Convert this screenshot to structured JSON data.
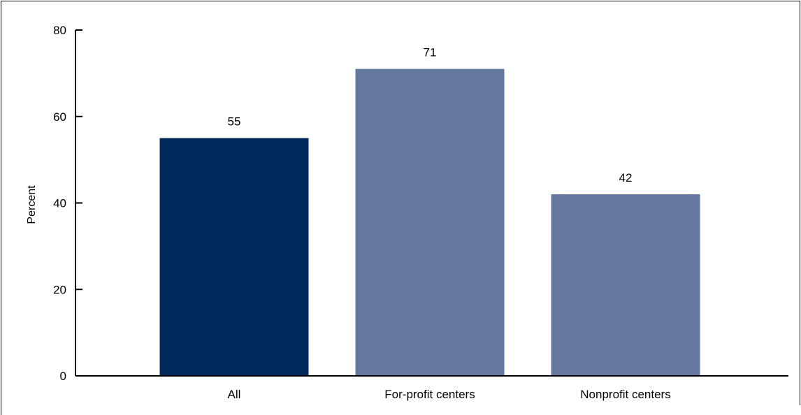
{
  "chart_data": {
    "type": "bar",
    "title": "",
    "xlabel": "",
    "ylabel": "Percent",
    "ylim": [
      0,
      80
    ],
    "yticks": [
      0,
      20,
      40,
      60,
      80
    ],
    "categories": [
      "All",
      "For-profit centers",
      "Nonprofit centers"
    ],
    "values": [
      55,
      71,
      42
    ],
    "data_labels": [
      "55",
      "71",
      "42"
    ],
    "colors": [
      "#002a5c",
      "#64779f",
      "#64779f"
    ],
    "grid": false,
    "legend": "none"
  }
}
